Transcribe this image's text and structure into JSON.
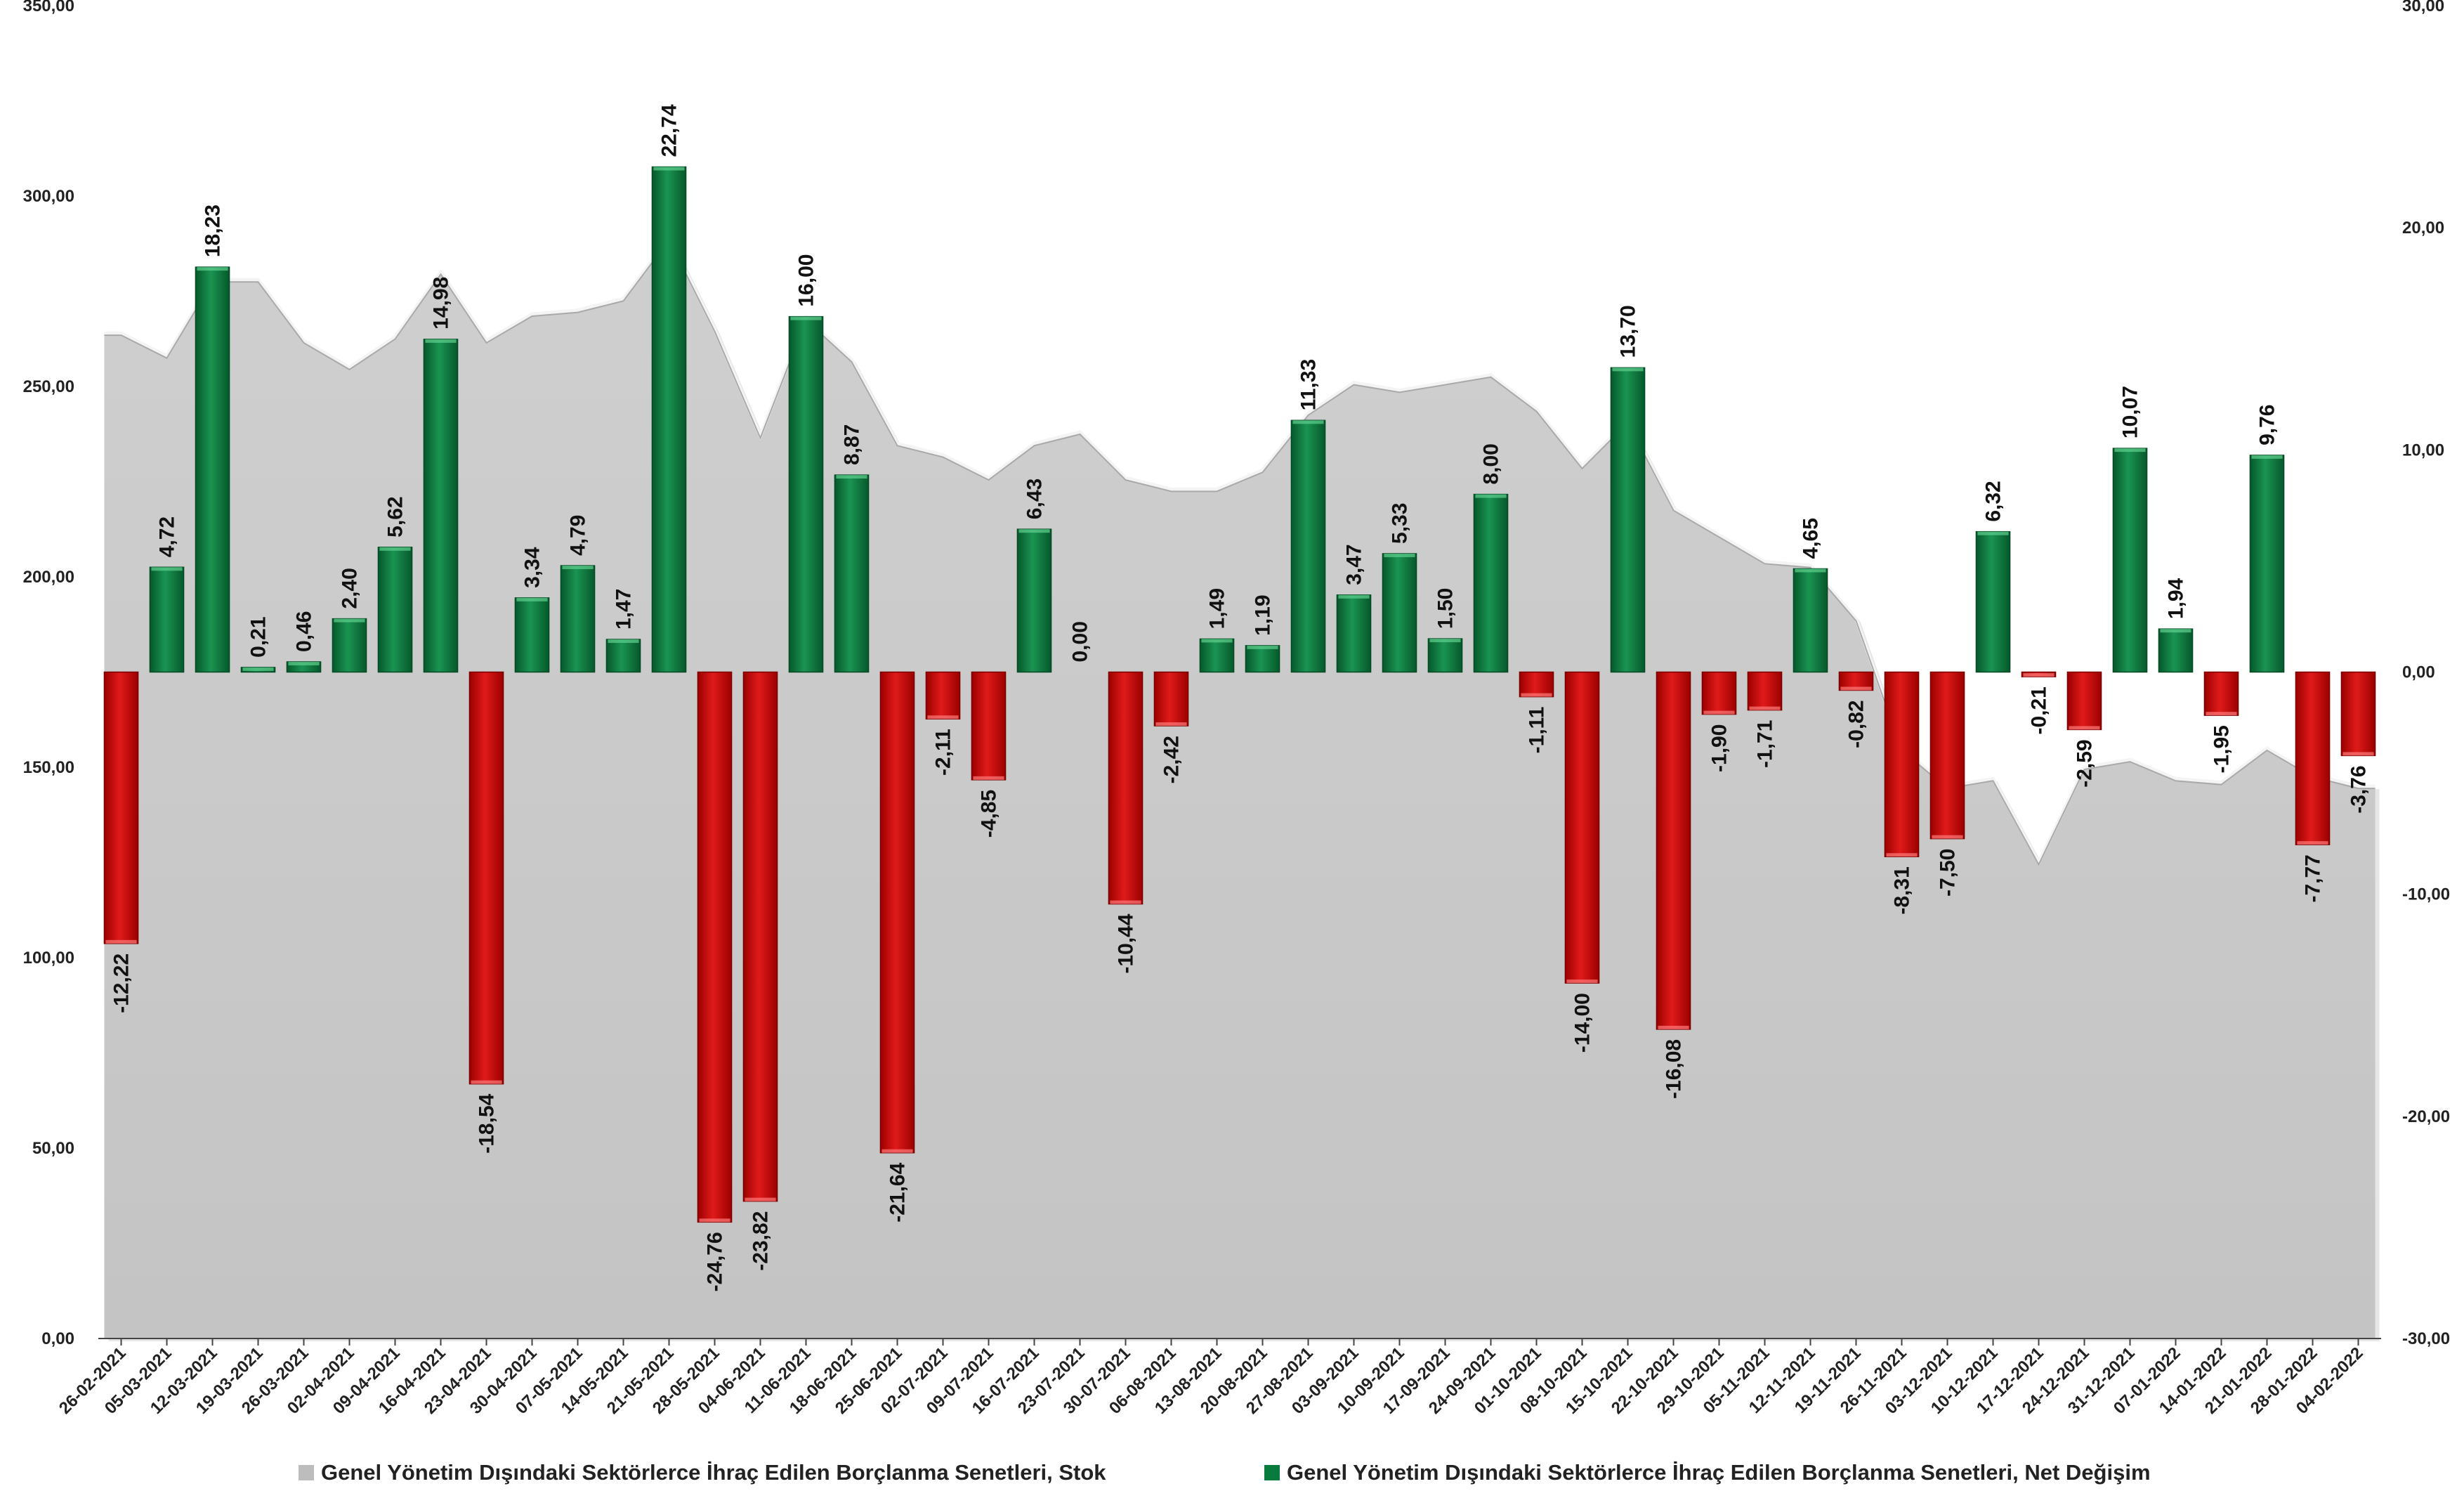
{
  "chart_data": {
    "type": "bar",
    "categories": [
      "26-02-2021",
      "05-03-2021",
      "12-03-2021",
      "19-03-2021",
      "26-03-2021",
      "02-04-2021",
      "09-04-2021",
      "16-04-2021",
      "23-04-2021",
      "30-04-2021",
      "07-05-2021",
      "14-05-2021",
      "21-05-2021",
      "28-05-2021",
      "04-06-2021",
      "11-06-2021",
      "18-06-2021",
      "25-06-2021",
      "02-07-2021",
      "09-07-2021",
      "16-07-2021",
      "23-07-2021",
      "30-07-2021",
      "06-08-2021",
      "13-08-2021",
      "20-08-2021",
      "27-08-2021",
      "03-09-2021",
      "10-09-2021",
      "17-09-2021",
      "24-09-2021",
      "01-10-2021",
      "08-10-2021",
      "15-10-2021",
      "22-10-2021",
      "29-10-2021",
      "05-11-2021",
      "12-11-2021",
      "19-11-2021",
      "26-11-2021",
      "03-12-2021",
      "10-12-2021",
      "17-12-2021",
      "24-12-2021",
      "31-12-2021",
      "07-01-2022",
      "14-01-2022",
      "21-01-2022",
      "28-01-2022",
      "04-02-2022"
    ],
    "series": [
      {
        "name": "Genel Yönetim Dışındaki Sektörlerce İhraç Edilen Borçlanma Senetleri, Stok",
        "kind": "area",
        "axis": "left",
        "values": [
          264,
          258,
          278,
          278,
          262,
          255,
          263,
          280,
          262,
          269,
          270,
          273,
          289,
          265,
          237,
          268,
          257,
          235,
          232,
          226,
          235,
          238,
          226,
          223,
          223,
          228,
          243,
          251,
          249,
          251,
          253,
          244,
          229,
          241,
          218,
          211,
          204,
          203,
          189,
          155,
          145,
          147,
          125,
          150,
          152,
          147,
          146,
          155,
          148,
          145
        ]
      },
      {
        "name": "Genel Yönetim Dışındaki Sektörlerce İhraç Edilen Borçlanma Senetleri, Net Değişim",
        "kind": "bar",
        "axis": "right",
        "values": [
          -12.22,
          4.72,
          18.23,
          0.21,
          0.46,
          2.4,
          5.62,
          14.98,
          -18.54,
          3.34,
          4.79,
          1.47,
          22.74,
          -24.76,
          -23.82,
          16.0,
          8.87,
          -21.64,
          -2.11,
          -4.85,
          6.43,
          0.0,
          -10.44,
          -2.42,
          1.49,
          1.19,
          11.33,
          3.47,
          5.33,
          1.5,
          8.0,
          -1.11,
          -14.0,
          13.7,
          -16.08,
          -1.9,
          -1.71,
          4.65,
          -0.82,
          -8.31,
          -7.5,
          6.32,
          -0.21,
          -2.59,
          10.07,
          1.94,
          -1.95,
          9.76,
          -7.77,
          -3.76
        ],
        "labels": [
          "-12,22",
          "4,72",
          "18,23",
          "0,21",
          "0,46",
          "2,40",
          "5,62",
          "14,98",
          "-18,54",
          "3,34",
          "4,79",
          "1,47",
          "22,74",
          "-24,76",
          "-23,82",
          "16,00",
          "8,87",
          "-21,64",
          "-2,11",
          "-4,85",
          "6,43",
          "0,00",
          "-10,44",
          "-2,42",
          "1,49",
          "1,19",
          "11,33",
          "3,47",
          "5,33",
          "1,50",
          "8,00",
          "-1,11",
          "-14,00",
          "13,70",
          "-16,08",
          "-1,90",
          "-1,71",
          "4,65",
          "-0,82",
          "-8,31",
          "-7,50",
          "6,32",
          "-0,21",
          "-2,59",
          "10,07",
          "1,94",
          "-1,95",
          "9,76",
          "-7,77",
          "-3,76"
        ]
      }
    ],
    "y_left": {
      "ylim": [
        0,
        350
      ],
      "ticks": [
        "0,00",
        "50,00",
        "100,00",
        "150,00",
        "200,00",
        "250,00",
        "300,00",
        "350,00"
      ]
    },
    "y_right": {
      "ylim": [
        -30,
        30
      ],
      "ticks": [
        "-30,00",
        "-20,00",
        "-10,00",
        "0,00",
        "10,00",
        "20,00",
        "30,00"
      ]
    },
    "grid": false,
    "legend_position": "bottom",
    "colors": {
      "area_fill": "#d3d3d3",
      "area_edge": "#a9a9a9",
      "positive_bar": "#0b7a3e",
      "positive_bar_light": "#2fa866",
      "negative_bar": "#cc0000",
      "negative_bar_light": "#ff5c5c",
      "legend_stock": "#bdbdbd",
      "legend_change": "#0b7a3e"
    }
  }
}
